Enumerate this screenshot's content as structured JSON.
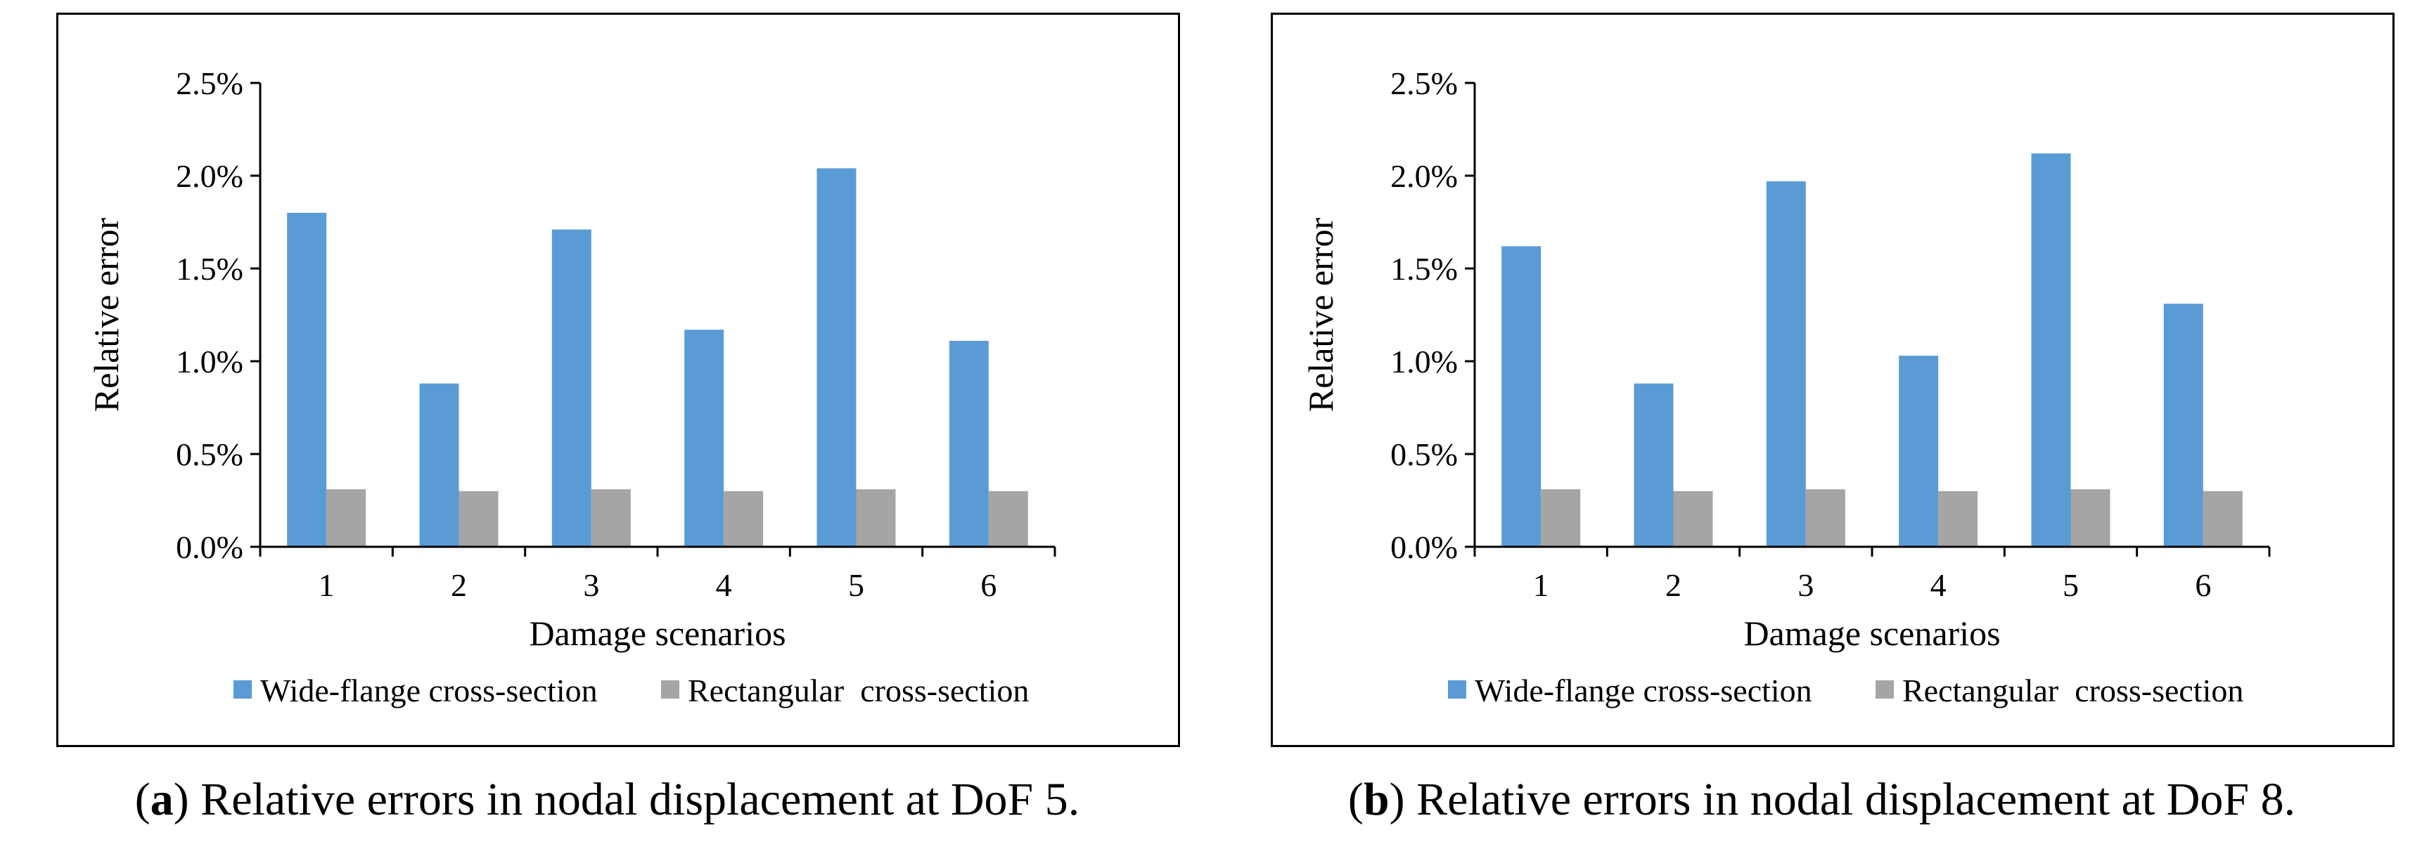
{
  "colors": {
    "series1": "#5b9bd5",
    "series2": "#a5a5a5",
    "axis": "#000000"
  },
  "chart_data": [
    {
      "type": "bar",
      "categories": [
        "1",
        "2",
        "3",
        "4",
        "5",
        "6"
      ],
      "series": [
        {
          "name": "Wide-flange cross-section",
          "values": [
            1.8,
            0.88,
            1.71,
            1.17,
            2.04,
            1.11
          ]
        },
        {
          "name": "Rectangular  cross-section",
          "values": [
            0.31,
            0.3,
            0.31,
            0.3,
            0.31,
            0.3
          ]
        }
      ],
      "xlabel": "Damage scenarios",
      "ylabel": "Relative error",
      "ylim": [
        0,
        2.5
      ],
      "yticks": [
        "0.0%",
        "0.5%",
        "1.0%",
        "1.5%",
        "2.0%",
        "2.5%"
      ],
      "legend": "bottom",
      "caption_label": "a",
      "caption_text": " Relative errors in nodal displacement at DoF 5."
    },
    {
      "type": "bar",
      "categories": [
        "1",
        "2",
        "3",
        "4",
        "5",
        "6"
      ],
      "series": [
        {
          "name": "Wide-flange cross-section",
          "values": [
            1.62,
            0.88,
            1.97,
            1.03,
            2.12,
            1.31
          ]
        },
        {
          "name": "Rectangular  cross-section",
          "values": [
            0.31,
            0.3,
            0.31,
            0.3,
            0.31,
            0.3
          ]
        }
      ],
      "xlabel": "Damage scenarios",
      "ylabel": "Relative error",
      "ylim": [
        0,
        2.5
      ],
      "yticks": [
        "0.0%",
        "0.5%",
        "1.0%",
        "1.5%",
        "2.0%",
        "2.5%"
      ],
      "legend": "bottom",
      "caption_label": "b",
      "caption_text": " Relative errors in nodal displacement at DoF 8."
    }
  ]
}
